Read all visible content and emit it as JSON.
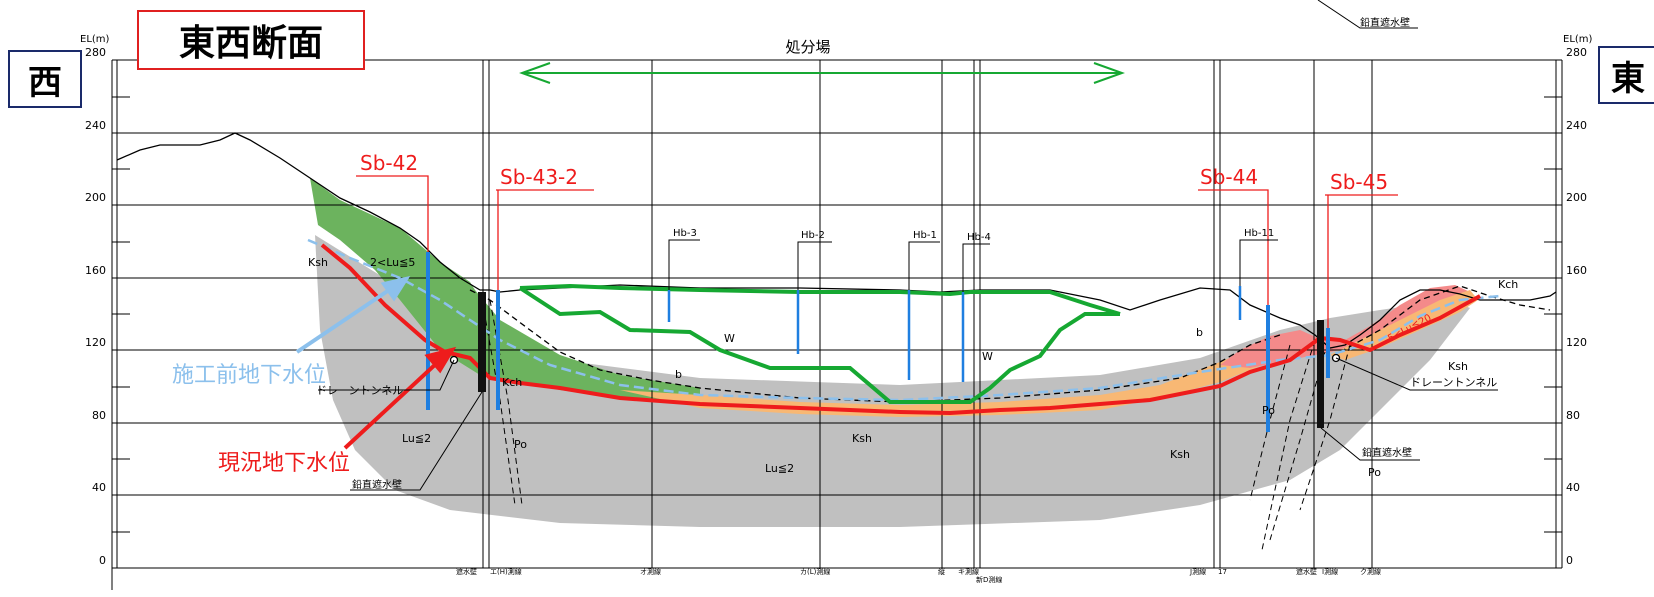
{
  "title": "東西断面",
  "west_label": "西",
  "east_label": "東",
  "top_right_note": "鉛直遮水壁",
  "facility_label": "処分場",
  "axis": {
    "unit_left": "EL(m)",
    "unit_right": "EL(m)",
    "ticks": [
      "0",
      "40",
      "80",
      "120",
      "160",
      "200",
      "240",
      "280"
    ]
  },
  "boreholes": {
    "sb42": "Sb-42",
    "sb43_2": "Sb-43-2",
    "sb44": "Sb-44",
    "sb45": "Sb-45",
    "hb3": "Hb-3",
    "hb2": "Hb-2",
    "hb1": "Hb-1",
    "hb4": "Hb-4",
    "hb11": "Hb-11"
  },
  "legend": {
    "pre_construction_gw": "施工前地下水位",
    "current_gw": "現況地下水位"
  },
  "strata": {
    "ksh_upper_left": "Ksh",
    "lu_range_left": "2<Lu≦5",
    "kch_left": "Kch",
    "lu_le2_left": "Lu≦2",
    "po_left": "Po",
    "w_upper": "W",
    "w_lower": "W",
    "b_left": "b",
    "b_right": "b",
    "ksh_center": "Ksh",
    "lu_le2_center": "Lu≦2",
    "ksh_right_lower": "Ksh",
    "po_right": "Po",
    "po_right_lower": "Po",
    "ksh_right": "Ksh",
    "kch_right": "Kch",
    "lu_range_right": "5<Lu≦20"
  },
  "annotations": {
    "drain_tunnel_left": "ドレーントンネル",
    "drain_tunnel_right": "ドレーントンネル",
    "cutoff_wall_left": "鉛直遮水壁",
    "cutoff_wall_right": "鉛直遮水壁"
  },
  "survey_lines": {
    "s1": "遮水壁",
    "s2": "エ(H)測線",
    "s3": "オ測線",
    "s4": "カ(L)測線",
    "s5": "縦",
    "s6": "キ測線",
    "s7": "新D測線",
    "s8": "J測線",
    "s9": "17",
    "s10": "遮水壁",
    "s11": "I測線",
    "s12": "ク測線"
  },
  "colors": {
    "current_gw": "#ee1c1c",
    "pre_construction_gw": "#8cc0ec",
    "waste_outline": "#16a832",
    "borehole": "#1f7fe0",
    "kch_fill": "#6cb35e",
    "lu_fill": "#c0c0c0",
    "orange_fill": "#f8b874",
    "pink_fill": "#f48a8a",
    "title_border": "#e02020",
    "dir_border": "#1a2a6a"
  }
}
